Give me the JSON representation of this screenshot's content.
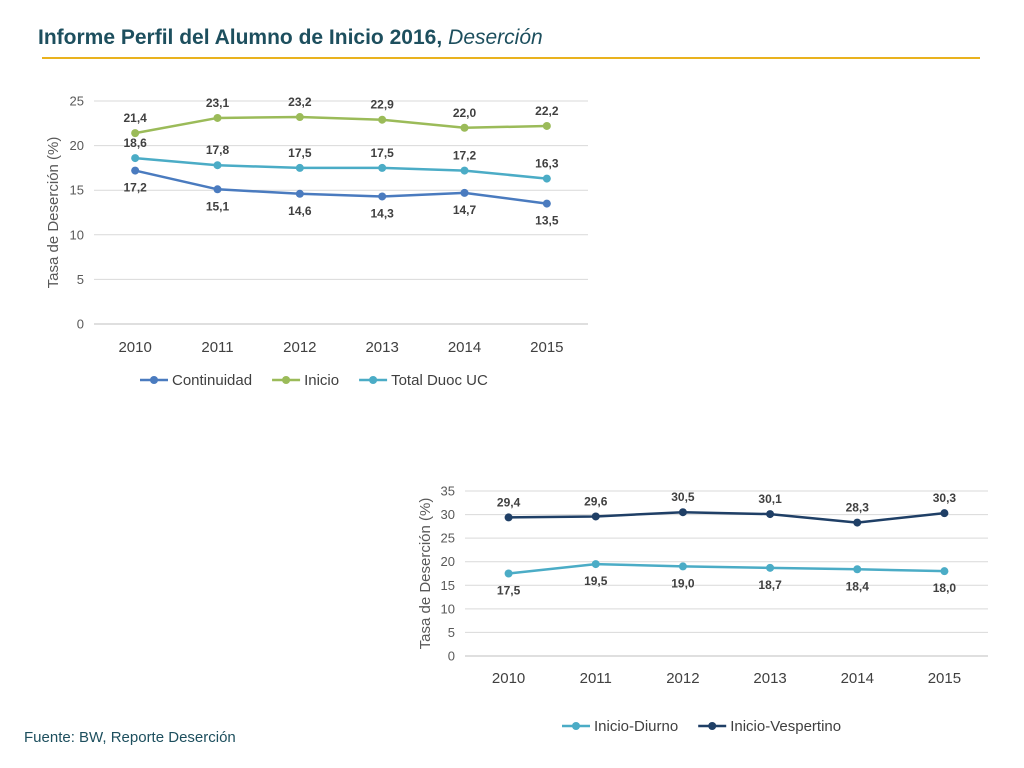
{
  "header": {
    "title": "Informe Perfil del Alumno de Inicio 2016,",
    "subtitle": "Deserción"
  },
  "footer": {
    "source": "Fuente: BW, Reporte Deserción"
  },
  "chart_data": [
    {
      "type": "line",
      "categories": [
        "2010",
        "2011",
        "2012",
        "2013",
        "2014",
        "2015"
      ],
      "ylabel": "Tasa de Deserción (%)",
      "xlabel": "",
      "ylim": [
        0,
        25
      ],
      "yticks": [
        0,
        5,
        10,
        15,
        20,
        25
      ],
      "grid": true,
      "legend": "bottom",
      "series": [
        {
          "name": "Continuidad",
          "color": "#4a7bbf",
          "values": [
            17.2,
            15.1,
            14.6,
            14.3,
            14.7,
            13.5
          ],
          "labels": [
            "17,2",
            "15,1",
            "14,6",
            "14,3",
            "14,7",
            "13,5"
          ],
          "label_pos": "below"
        },
        {
          "name": "Inicio",
          "color": "#9bbb59",
          "values": [
            21.4,
            23.1,
            23.2,
            22.9,
            22.0,
            22.2
          ],
          "labels": [
            "21,4",
            "23,1",
            "23,2",
            "22,9",
            "22,0",
            "22,2"
          ],
          "label_pos": "above"
        },
        {
          "name": "Total Duoc UC",
          "color": "#4bacc6",
          "values": [
            18.6,
            17.8,
            17.5,
            17.5,
            17.2,
            16.3
          ],
          "labels": [
            "18,6",
            "17,8",
            "17,5",
            "17,5",
            "17,2",
            "16,3"
          ],
          "label_pos": "above"
        }
      ]
    },
    {
      "type": "line",
      "categories": [
        "2010",
        "2011",
        "2012",
        "2013",
        "2014",
        "2015"
      ],
      "ylabel": "Tasa de Deserción (%)",
      "xlabel": "",
      "ylim": [
        0,
        35
      ],
      "yticks": [
        0,
        5,
        10,
        15,
        20,
        25,
        30,
        35
      ],
      "grid": true,
      "legend": "bottom",
      "series": [
        {
          "name": "Inicio-Diurno",
          "color": "#4bacc6",
          "values": [
            17.5,
            19.5,
            19.0,
            18.7,
            18.4,
            18.0
          ],
          "labels": [
            "17,5",
            "19,5",
            "19,0",
            "18,7",
            "18,4",
            "18,0"
          ],
          "label_pos": "below"
        },
        {
          "name": "Inicio-Vespertino",
          "color": "#1f3f66",
          "values": [
            29.4,
            29.6,
            30.5,
            30.1,
            28.3,
            30.3
          ],
          "labels": [
            "29,4",
            "29,6",
            "30,5",
            "30,1",
            "28,3",
            "30,3"
          ],
          "label_pos": "above"
        }
      ]
    }
  ]
}
